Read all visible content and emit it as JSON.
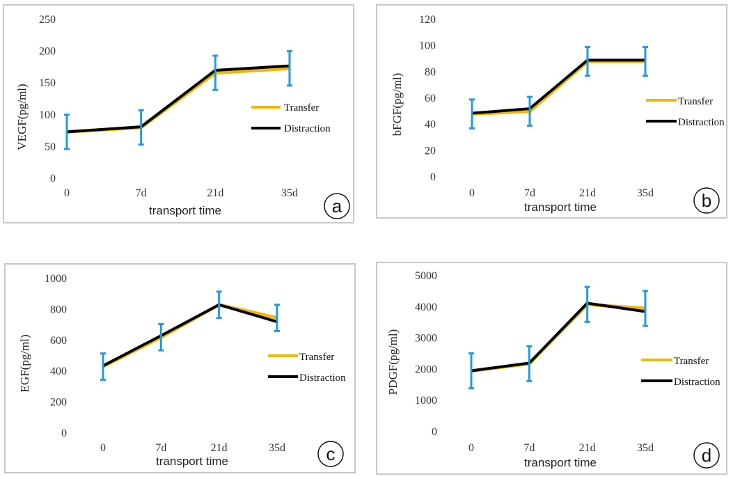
{
  "colors": {
    "transfer": "#f2b705",
    "distraction": "#000000",
    "error_bar": "#1f9be0",
    "frame": "#c8c8c8"
  },
  "chart_data": [
    {
      "panel": "a",
      "type": "line",
      "xlabel": "transport time",
      "ylabel": "VEGF(pg/ml)",
      "categories": [
        "0",
        "7d",
        "21d",
        "35d"
      ],
      "ylim": [
        0,
        250
      ],
      "yticks": [
        0,
        50,
        100,
        150,
        200,
        250
      ],
      "legend_position": "right",
      "series": [
        {
          "name": "Transfer",
          "values": [
            73,
            80,
            166,
            173
          ],
          "errors": [
            27,
            27,
            27,
            27
          ]
        },
        {
          "name": "Distraction",
          "values": [
            73,
            81,
            170,
            177
          ],
          "errors": [
            27,
            27,
            27,
            27
          ]
        }
      ]
    },
    {
      "panel": "b",
      "type": "line",
      "xlabel": "transport time",
      "ylabel": "bFGF(pg/ml)",
      "categories": [
        "0",
        "7d",
        "21d",
        "35d"
      ],
      "ylim": [
        0,
        120
      ],
      "yticks": [
        0,
        20,
        40,
        60,
        80,
        100,
        120
      ],
      "legend_position": "right",
      "series": [
        {
          "name": "Transfer",
          "values": [
            48,
            50,
            88,
            88
          ],
          "errors": [
            11,
            11,
            11,
            11
          ]
        },
        {
          "name": "Distraction",
          "values": [
            48.5,
            52,
            89,
            89
          ],
          "errors": [
            11,
            11,
            11,
            11
          ]
        }
      ]
    },
    {
      "panel": "c",
      "type": "line",
      "xlabel": "transport time",
      "ylabel": "EGF(pg/ml)",
      "categories": [
        "0",
        "7d",
        "21d",
        "35d"
      ],
      "ylim": [
        0,
        1000
      ],
      "yticks": [
        0,
        200,
        400,
        600,
        800,
        1000
      ],
      "legend_position": "right",
      "series": [
        {
          "name": "Transfer",
          "values": [
            430,
            620,
            830,
            745
          ],
          "errors": [
            85,
            85,
            85,
            85
          ]
        },
        {
          "name": "Distraction",
          "values": [
            435,
            630,
            830,
            720
          ],
          "errors": [
            85,
            85,
            85,
            85
          ]
        }
      ]
    },
    {
      "panel": "d",
      "type": "line",
      "xlabel": "transport time",
      "ylabel": "PDGF(pg/ml)",
      "categories": [
        "0",
        "7d",
        "21d",
        "35d"
      ],
      "ylim": [
        0,
        5000
      ],
      "yticks": [
        0,
        1000,
        2000,
        3000,
        4000,
        5000
      ],
      "legend_position": "right",
      "series": [
        {
          "name": "Transfer",
          "values": [
            1950,
            2180,
            4080,
            3950
          ],
          "errors": [
            560,
            560,
            560,
            560
          ]
        },
        {
          "name": "Distraction",
          "values": [
            1950,
            2200,
            4120,
            3850
          ],
          "errors": [
            560,
            560,
            560,
            560
          ]
        }
      ]
    }
  ]
}
